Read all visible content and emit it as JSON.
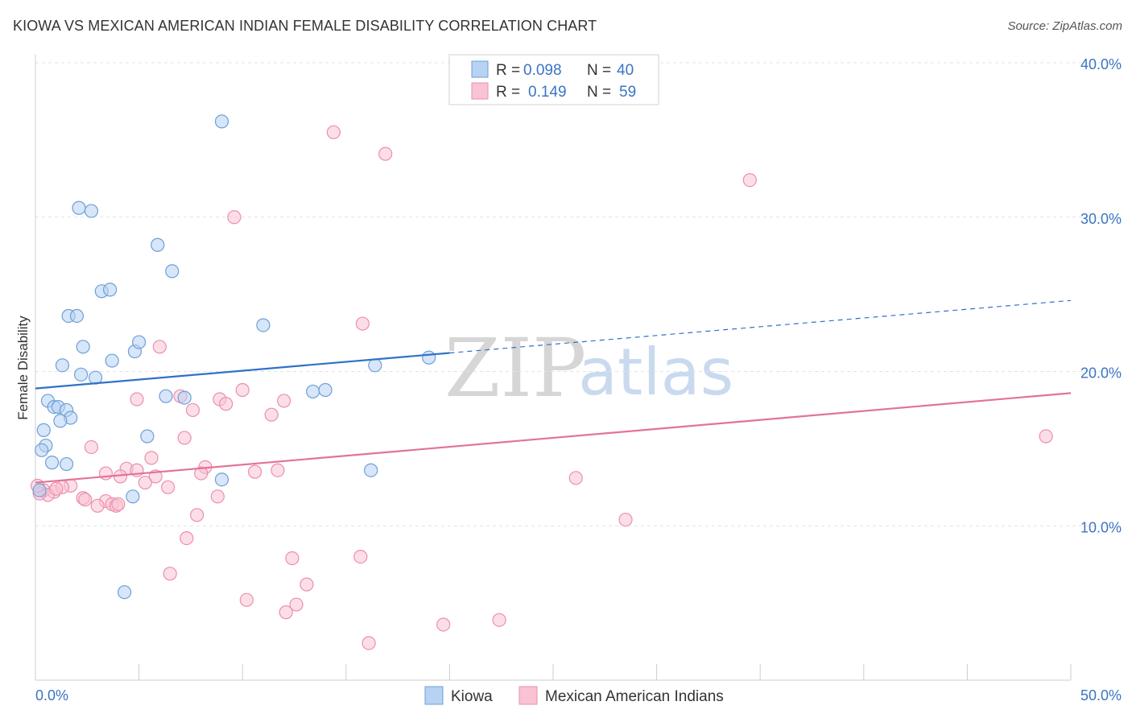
{
  "title": "KIOWA VS MEXICAN AMERICAN INDIAN FEMALE DISABILITY CORRELATION CHART",
  "source": "Source: ZipAtlas.com",
  "watermark": {
    "zip": "ZIP",
    "atlas": "atlas"
  },
  "legend": {
    "kiowa": {
      "r_label": "R =",
      "r_value": "0.098",
      "n_label": "N =",
      "n_value": "40"
    },
    "mexican": {
      "r_label": "R =",
      "r_value": "0.149",
      "n_label": "N =",
      "n_value": "59"
    }
  },
  "bottom_legend": {
    "kiowa": "Kiowa",
    "mexican": "Mexican American Indians"
  },
  "colors": {
    "kiowa_fill": "#b7d2f3",
    "kiowa_stroke": "#6e9fd8",
    "kiowa_line": "#2f72c8",
    "mexican_fill": "#f9c3d3",
    "mexican_stroke": "#ec8fac",
    "mexican_line": "#e2739a"
  },
  "chart_data": {
    "type": "scatter",
    "title": "KIOWA VS MEXICAN AMERICAN INDIAN FEMALE DISABILITY CORRELATION CHART",
    "xlabel": "",
    "ylabel": "Female Disability",
    "xlim": [
      0,
      50
    ],
    "ylim": [
      0,
      40
    ],
    "x_tick_labels": [
      "0.0%",
      "50.0%"
    ],
    "y_ticks": [
      10,
      20,
      30,
      40
    ],
    "y_tick_labels": [
      "10.0%",
      "20.0%",
      "30.0%",
      "40.0%"
    ],
    "series": [
      {
        "name": "Kiowa",
        "trend": {
          "x0": 0,
          "y0": 18.9,
          "x1": 20,
          "y1": 21.2,
          "dash_x1": 50,
          "dash_y1": 24.6
        },
        "points": [
          [
            9.0,
            36.2
          ],
          [
            2.1,
            30.6
          ],
          [
            2.7,
            30.4
          ],
          [
            5.9,
            28.2
          ],
          [
            6.6,
            26.5
          ],
          [
            3.2,
            25.2
          ],
          [
            3.6,
            25.3
          ],
          [
            1.6,
            23.6
          ],
          [
            2.0,
            23.6
          ],
          [
            11.0,
            23.0
          ],
          [
            4.8,
            21.3
          ],
          [
            2.3,
            21.6
          ],
          [
            5.0,
            21.9
          ],
          [
            3.7,
            20.7
          ],
          [
            1.3,
            20.4
          ],
          [
            19.0,
            20.9
          ],
          [
            16.4,
            20.4
          ],
          [
            2.2,
            19.8
          ],
          [
            2.9,
            19.6
          ],
          [
            0.6,
            18.1
          ],
          [
            6.3,
            18.4
          ],
          [
            7.2,
            18.3
          ],
          [
            13.4,
            18.7
          ],
          [
            14.0,
            18.8
          ],
          [
            0.9,
            17.7
          ],
          [
            1.1,
            17.7
          ],
          [
            1.5,
            17.5
          ],
          [
            1.7,
            17.0
          ],
          [
            1.2,
            16.8
          ],
          [
            0.4,
            16.2
          ],
          [
            5.4,
            15.8
          ],
          [
            0.5,
            15.2
          ],
          [
            0.3,
            14.9
          ],
          [
            0.8,
            14.1
          ],
          [
            1.5,
            14.0
          ],
          [
            16.2,
            13.6
          ],
          [
            9.0,
            13.0
          ],
          [
            0.2,
            12.3
          ],
          [
            4.7,
            11.9
          ],
          [
            4.3,
            5.7
          ]
        ]
      },
      {
        "name": "Mexican American Indians",
        "trend": {
          "x0": 0,
          "y0": 12.8,
          "x1": 50,
          "y1": 18.6
        },
        "points": [
          [
            14.4,
            35.5
          ],
          [
            16.9,
            34.1
          ],
          [
            34.5,
            32.4
          ],
          [
            9.6,
            30.0
          ],
          [
            15.8,
            23.1
          ],
          [
            6.0,
            21.6
          ],
          [
            4.9,
            18.2
          ],
          [
            8.9,
            18.2
          ],
          [
            9.2,
            17.9
          ],
          [
            10.0,
            18.8
          ],
          [
            7.0,
            18.4
          ],
          [
            12.0,
            18.1
          ],
          [
            7.6,
            17.5
          ],
          [
            11.4,
            17.2
          ],
          [
            48.8,
            15.8
          ],
          [
            7.2,
            15.7
          ],
          [
            2.7,
            15.1
          ],
          [
            5.6,
            14.4
          ],
          [
            8.2,
            13.8
          ],
          [
            4.4,
            13.7
          ],
          [
            3.4,
            13.4
          ],
          [
            4.9,
            13.6
          ],
          [
            8.0,
            13.4
          ],
          [
            10.6,
            13.5
          ],
          [
            11.7,
            13.6
          ],
          [
            4.1,
            13.2
          ],
          [
            5.8,
            13.2
          ],
          [
            26.1,
            13.1
          ],
          [
            5.3,
            12.8
          ],
          [
            6.4,
            12.5
          ],
          [
            1.7,
            12.6
          ],
          [
            0.4,
            12.3
          ],
          [
            0.9,
            12.2
          ],
          [
            1.3,
            12.5
          ],
          [
            0.6,
            12.0
          ],
          [
            0.2,
            12.1
          ],
          [
            2.3,
            11.8
          ],
          [
            2.4,
            11.7
          ],
          [
            3.4,
            11.6
          ],
          [
            3.7,
            11.4
          ],
          [
            3.0,
            11.3
          ],
          [
            3.9,
            11.3
          ],
          [
            4.0,
            11.4
          ],
          [
            8.8,
            11.9
          ],
          [
            7.8,
            10.7
          ],
          [
            28.5,
            10.4
          ],
          [
            7.3,
            9.2
          ],
          [
            12.4,
            7.9
          ],
          [
            15.7,
            8.0
          ],
          [
            6.5,
            6.9
          ],
          [
            13.1,
            6.2
          ],
          [
            10.2,
            5.2
          ],
          [
            12.6,
            4.9
          ],
          [
            12.1,
            4.4
          ],
          [
            22.4,
            3.9
          ],
          [
            19.7,
            3.6
          ],
          [
            16.1,
            2.4
          ],
          [
            0.1,
            12.6
          ],
          [
            1.0,
            12.4
          ]
        ]
      }
    ]
  }
}
